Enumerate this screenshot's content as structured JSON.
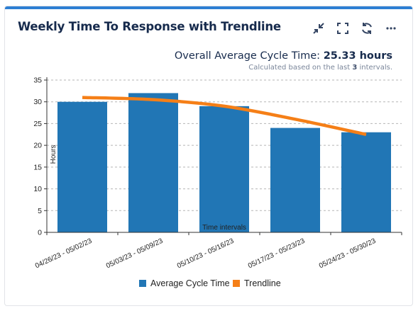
{
  "widget": {
    "title": "Weekly Time To Response with Trendline",
    "toolbar": {
      "icons": [
        "collapse-icon",
        "fullscreen-icon",
        "refresh-icon",
        "more-icon"
      ]
    }
  },
  "summary": {
    "label": "Overall Average Cycle Time:",
    "value": "25.33 hours",
    "sub_prefix": "Calculated based on the last",
    "sub_count": "3",
    "sub_suffix": "intervals."
  },
  "colors": {
    "bar": "#2176b5",
    "trend": "#f57f17",
    "accent": "#2d7fd3"
  },
  "chart_data": {
    "type": "bar",
    "categories": [
      "04/26/23 - 05/02/23",
      "05/03/23 - 05/09/23",
      "05/10/23 - 05/16/23",
      "05/17/23 - 05/23/23",
      "05/24/23 - 05/30/23"
    ],
    "series": [
      {
        "name": "Average Cycle Time",
        "type": "bar",
        "values": [
          30,
          32,
          29,
          24,
          23
        ]
      },
      {
        "name": "Trendline",
        "type": "line",
        "values": [
          31,
          30.5,
          29,
          26,
          22.5
        ]
      }
    ],
    "xlabel": "Time intervals",
    "ylabel": "Hours",
    "ylim": [
      0,
      35
    ],
    "yticks": [
      0,
      5,
      10,
      15,
      20,
      25,
      30,
      35
    ],
    "grid": true,
    "legend": "bottom"
  }
}
